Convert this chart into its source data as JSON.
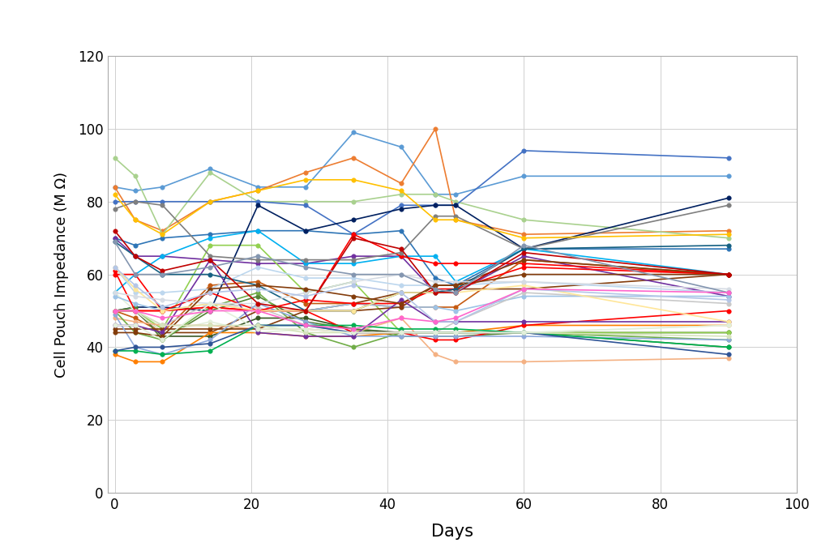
{
  "xlabel": "Days",
  "ylabel": "Cell Pouch Impedance (M Ω)",
  "xlim": [
    -1,
    100
  ],
  "ylim": [
    0,
    120
  ],
  "xticks": [
    0,
    20,
    40,
    60,
    80,
    100
  ],
  "yticks": [
    0,
    20,
    40,
    60,
    80,
    100,
    120
  ],
  "background_color": "#ffffff",
  "days": [
    0,
    3,
    7,
    14,
    21,
    28,
    35,
    42,
    47,
    50,
    60,
    90
  ],
  "series": [
    {
      "color": "#5B9BD5",
      "values": [
        84,
        83,
        84,
        89,
        84,
        84,
        99,
        95,
        82,
        82,
        87,
        87
      ]
    },
    {
      "color": "#ED7D31",
      "values": [
        84,
        75,
        72,
        80,
        83,
        88,
        92,
        85,
        100,
        75,
        71,
        72
      ]
    },
    {
      "color": "#A9D18E",
      "values": [
        92,
        87,
        71,
        88,
        80,
        80,
        80,
        82,
        82,
        80,
        75,
        70
      ]
    },
    {
      "color": "#2E75B6",
      "values": [
        70,
        68,
        70,
        71,
        72,
        72,
        71,
        72,
        59,
        57,
        67,
        67
      ]
    },
    {
      "color": "#4472C4",
      "values": [
        80,
        80,
        80,
        80,
        80,
        79,
        71,
        79,
        79,
        79,
        94,
        92
      ]
    },
    {
      "color": "#843C0C",
      "values": [
        50,
        50,
        44,
        44,
        50,
        50,
        52,
        55,
        55,
        56,
        56,
        60
      ]
    },
    {
      "color": "#375623",
      "values": [
        50,
        50,
        43,
        43,
        48,
        48,
        45,
        44,
        44,
        44,
        44,
        44
      ]
    },
    {
      "color": "#7030A0",
      "values": [
        70,
        65,
        65,
        64,
        63,
        63,
        65,
        65,
        55,
        55,
        65,
        54
      ]
    },
    {
      "color": "#00B0F0",
      "values": [
        55,
        60,
        65,
        70,
        72,
        63,
        63,
        65,
        65,
        58,
        67,
        60
      ]
    },
    {
      "color": "#FF0000",
      "values": [
        60,
        60,
        50,
        51,
        50,
        50,
        71,
        65,
        63,
        63,
        63,
        60
      ]
    },
    {
      "color": "#92D050",
      "values": [
        50,
        50,
        45,
        68,
        68,
        55,
        58,
        44,
        44,
        44,
        44,
        44
      ]
    },
    {
      "color": "#C55A11",
      "values": [
        50,
        48,
        44,
        57,
        58,
        52,
        52,
        51,
        51,
        51,
        64,
        60
      ]
    },
    {
      "color": "#002060",
      "values": [
        50,
        51,
        51,
        50,
        79,
        72,
        75,
        78,
        79,
        79,
        67,
        81
      ]
    },
    {
      "color": "#7F7F7F",
      "values": [
        78,
        80,
        79,
        65,
        64,
        64,
        64,
        66,
        76,
        76,
        67,
        79
      ]
    },
    {
      "color": "#BDD7EE",
      "values": [
        62,
        55,
        55,
        56,
        62,
        59,
        59,
        57,
        57,
        57,
        58,
        55
      ]
    },
    {
      "color": "#548235",
      "values": [
        50,
        51,
        42,
        50,
        54,
        47,
        45,
        43,
        43,
        43,
        44,
        40
      ]
    },
    {
      "color": "#FF7F00",
      "values": [
        38,
        36,
        36,
        44,
        44,
        43,
        43,
        44,
        44,
        44,
        46,
        46
      ]
    },
    {
      "color": "#E2EFDA",
      "values": [
        55,
        50,
        44,
        47,
        44,
        45,
        44,
        44,
        44,
        44,
        44,
        46
      ]
    },
    {
      "color": "#F4B183",
      "values": [
        48,
        47,
        46,
        46,
        45,
        45,
        44,
        48,
        38,
        36,
        36,
        37
      ]
    },
    {
      "color": "#9DC3E6",
      "values": [
        54,
        52,
        50,
        52,
        50,
        50,
        52,
        51,
        51,
        50,
        54,
        54
      ]
    },
    {
      "color": "#70AD47",
      "values": [
        50,
        44,
        42,
        51,
        55,
        44,
        40,
        44,
        44,
        44,
        44,
        42
      ]
    },
    {
      "color": "#C9C9C9",
      "values": [
        50,
        50,
        46,
        52,
        51,
        46,
        44,
        44,
        44,
        47,
        55,
        52
      ]
    },
    {
      "color": "#FF0000",
      "values": [
        61,
        50,
        50,
        55,
        50,
        50,
        44,
        44,
        42,
        42,
        46,
        50
      ]
    },
    {
      "color": "#843C0C",
      "values": [
        45,
        45,
        45,
        45,
        45,
        50,
        50,
        51,
        57,
        57,
        64,
        60
      ]
    },
    {
      "color": "#8EA9DB",
      "values": [
        49,
        40,
        38,
        42,
        52,
        47,
        43,
        43,
        43,
        43,
        43,
        42
      ]
    },
    {
      "color": "#7030A0",
      "values": [
        46,
        46,
        44,
        64,
        44,
        43,
        43,
        53,
        47,
        47,
        47,
        47
      ]
    },
    {
      "color": "#00B050",
      "values": [
        39,
        39,
        38,
        39,
        46,
        46,
        46,
        45,
        45,
        45,
        44,
        40
      ]
    },
    {
      "color": "#FF0000",
      "values": [
        50,
        50,
        50,
        51,
        50,
        53,
        52,
        52,
        56,
        56,
        62,
        60
      ]
    },
    {
      "color": "#FFC000",
      "values": [
        82,
        75,
        71,
        80,
        83,
        86,
        86,
        83,
        75,
        75,
        70,
        71
      ]
    },
    {
      "color": "#156082",
      "values": [
        69,
        65,
        60,
        60,
        57,
        50,
        50,
        55,
        55,
        56,
        67,
        68
      ]
    },
    {
      "color": "#FFE699",
      "values": [
        62,
        56,
        50,
        52,
        50,
        50,
        50,
        55,
        55,
        55,
        57,
        47
      ]
    },
    {
      "color": "#D6DCE4",
      "values": [
        55,
        54,
        53,
        52,
        52,
        55,
        58,
        60,
        58,
        58,
        58,
        56
      ]
    },
    {
      "color": "#2F5496",
      "values": [
        39,
        40,
        40,
        41,
        46,
        46,
        44,
        44,
        44,
        44,
        44,
        38
      ]
    },
    {
      "color": "#833C0B",
      "values": [
        44,
        44,
        43,
        56,
        57,
        56,
        54,
        52,
        57,
        57,
        60,
        60
      ]
    },
    {
      "color": "#D6E4BC",
      "values": [
        50,
        50,
        46,
        46,
        46,
        44,
        44,
        44,
        44,
        44,
        44,
        43
      ]
    },
    {
      "color": "#E2EFDA",
      "values": [
        46,
        46,
        42,
        52,
        45,
        45,
        44,
        44,
        44,
        44,
        44,
        46
      ]
    },
    {
      "color": "#C00000",
      "values": [
        72,
        65,
        61,
        64,
        52,
        50,
        70,
        67,
        55,
        55,
        66,
        60
      ]
    },
    {
      "color": "#8496B0",
      "values": [
        69,
        60,
        60,
        62,
        65,
        62,
        60,
        60,
        56,
        55,
        68,
        55
      ]
    },
    {
      "color": "#B4C6E7",
      "values": [
        62,
        57,
        51,
        55,
        56,
        54,
        57,
        55,
        47,
        47,
        56,
        53
      ]
    },
    {
      "color": "#FF66CC",
      "values": [
        50,
        50,
        48,
        50,
        50,
        46,
        45,
        48,
        47,
        48,
        56,
        55
      ]
    }
  ]
}
